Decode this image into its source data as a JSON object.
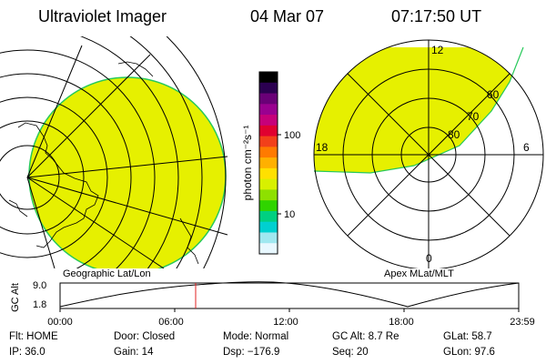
{
  "header": {
    "title": "Ultraviolet Imager",
    "date": "04 Mar 07",
    "time": "07:17:50 UT"
  },
  "geo_panel": {
    "label": "Geographic Lat/Lon"
  },
  "polar_panel": {
    "label": "Apex MLat/MLT",
    "mlt_labels": {
      "top": "12",
      "left": "18",
      "right": "6",
      "bottom": "0"
    },
    "lat_labels": [
      "60",
      "70",
      "80"
    ]
  },
  "colorbar": {
    "unit_label": "photon cm⁻²s⁻¹",
    "ticks": [
      "100",
      "10"
    ],
    "colors": [
      "#000000",
      "#2b0050",
      "#6a0077",
      "#9a0090",
      "#c6007a",
      "#e00030",
      "#f2401a",
      "#ff7a00",
      "#ffb000",
      "#ffe000",
      "#d8f000",
      "#8ee000",
      "#30d400",
      "#00d080",
      "#00d0d0",
      "#a0e8f0",
      "#e8f8ff"
    ]
  },
  "timeline": {
    "ylabel": "GC Alt",
    "yticks": [
      "9.0",
      "1.8"
    ],
    "xticks": [
      "00:00",
      "06:00",
      "12:00",
      "18:00",
      "23:59"
    ],
    "current_time": "07:17:50"
  },
  "info": {
    "flt": "Flt: HOME",
    "ip": "IP: 36.0",
    "door": "Door: Closed",
    "gain": "Gain: 14",
    "mode": "Mode: Normal",
    "dsp": "Dsp: −176.9",
    "gc_alt": "GC Alt: 8.7 Re",
    "seq": "Seq: 20",
    "glat": "GLat:  58.7",
    "glon": "GLon:  97.6"
  },
  "colors": {
    "fill": "#e6f000",
    "edge": "#27c95a",
    "marker": "#e02020"
  }
}
